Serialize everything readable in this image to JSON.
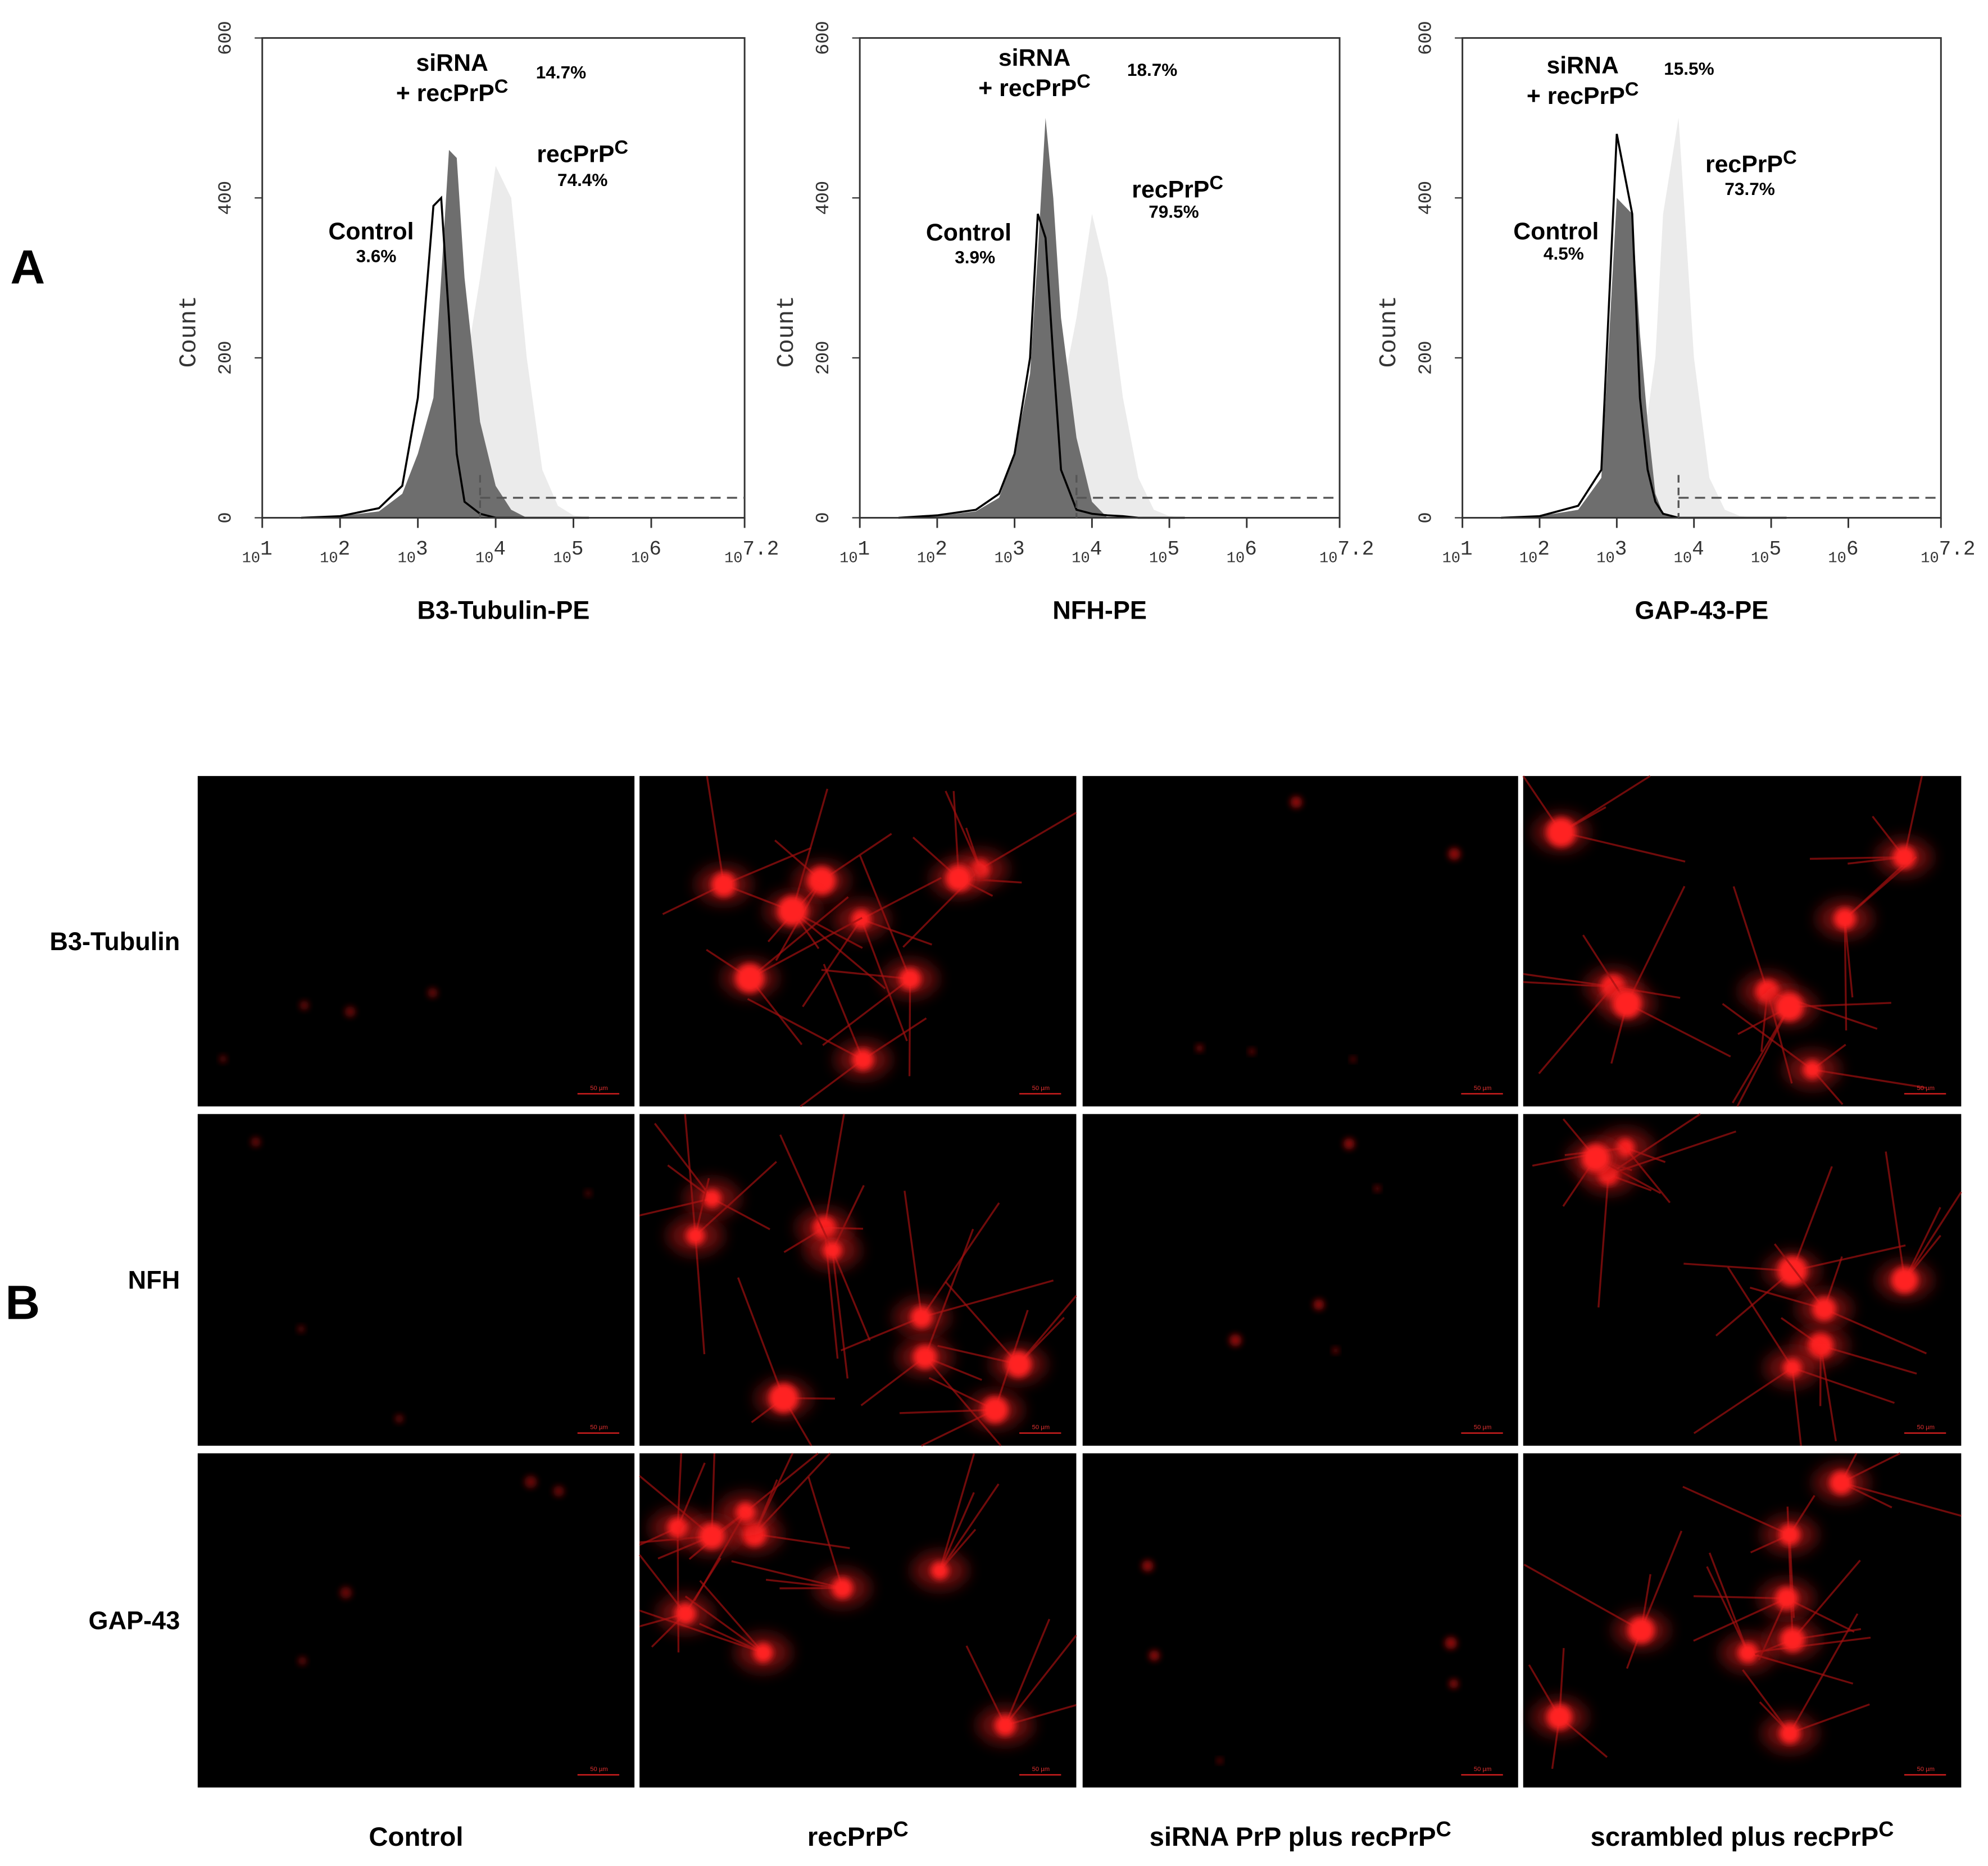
{
  "panel_a": {
    "letter": "A"
  },
  "chart_data": [
    {
      "type": "area",
      "xlabel": "B3-Tubulin-PE",
      "ylabel": "Count",
      "xlim": [
        1,
        7.2
      ],
      "ylim": [
        0,
        600
      ],
      "xticks": [
        {
          "value": 1,
          "label": "10",
          "sup": "1"
        },
        {
          "value": 2,
          "label": "10",
          "sup": "2"
        },
        {
          "value": 3,
          "label": "10",
          "sup": "3"
        },
        {
          "value": 4,
          "label": "10",
          "sup": "4"
        },
        {
          "value": 5,
          "label": "10",
          "sup": "5"
        },
        {
          "value": 6,
          "label": "10",
          "sup": "6"
        },
        {
          "value": 7.2,
          "label": "10",
          "sup": "7.2"
        }
      ],
      "yticks": [
        0,
        200,
        400,
        600
      ],
      "gate": {
        "x": [
          3.8,
          7.2
        ],
        "y": 25
      },
      "x": [
        1.5,
        2,
        2.5,
        2.8,
        3.0,
        3.2,
        3.3,
        3.4,
        3.5,
        3.6,
        3.8,
        4.0,
        4.2,
        4.4,
        4.6,
        4.8,
        5.0,
        5.2
      ],
      "series": [
        {
          "name_lines": [
            "Control"
          ],
          "percent": "3.6%",
          "color": "#000000",
          "style": "outline",
          "values": [
            0,
            2,
            12,
            40,
            150,
            390,
            400,
            250,
            80,
            20,
            5,
            0,
            0,
            0,
            0,
            0,
            0,
            0
          ]
        },
        {
          "name_lines": [
            "siRNA",
            "+ recPrP"
          ],
          "name_sup": "C",
          "percent": "14.7%",
          "color": "#6e6e6e",
          "style": "filled",
          "values": [
            0,
            2,
            8,
            30,
            80,
            150,
            300,
            460,
            450,
            300,
            120,
            40,
            10,
            0,
            0,
            0,
            0,
            0
          ]
        },
        {
          "name_lines": [
            "recPrP"
          ],
          "name_sup": "C",
          "percent": "74.4%",
          "color": "#ebebeb",
          "style": "filled",
          "values": [
            0,
            0,
            2,
            10,
            30,
            60,
            80,
            100,
            130,
            180,
            300,
            440,
            400,
            200,
            60,
            15,
            3,
            0
          ]
        }
      ]
    },
    {
      "type": "area",
      "xlabel": "NFH-PE",
      "ylabel": "Count",
      "xlim": [
        1,
        7.2
      ],
      "ylim": [
        0,
        600
      ],
      "xticks": [
        {
          "value": 1,
          "label": "10",
          "sup": "1"
        },
        {
          "value": 2,
          "label": "10",
          "sup": "2"
        },
        {
          "value": 3,
          "label": "10",
          "sup": "3"
        },
        {
          "value": 4,
          "label": "10",
          "sup": "4"
        },
        {
          "value": 5,
          "label": "10",
          "sup": "5"
        },
        {
          "value": 6,
          "label": "10",
          "sup": "6"
        },
        {
          "value": 7.2,
          "label": "10",
          "sup": "7.2"
        }
      ],
      "yticks": [
        0,
        200,
        400,
        600
      ],
      "gate": {
        "x": [
          3.8,
          7.2
        ],
        "y": 25
      },
      "x": [
        1.5,
        2,
        2.5,
        2.8,
        3.0,
        3.2,
        3.3,
        3.4,
        3.5,
        3.6,
        3.8,
        4.0,
        4.2,
        4.4,
        4.6,
        4.8,
        5.0,
        5.2
      ],
      "series": [
        {
          "name_lines": [
            "Control"
          ],
          "percent": "3.9%",
          "color": "#000000",
          "style": "outline",
          "values": [
            0,
            3,
            10,
            30,
            80,
            200,
            380,
            350,
            200,
            60,
            10,
            5,
            3,
            2,
            0,
            0,
            0,
            0
          ]
        },
        {
          "name_lines": [
            "siRNA",
            "+ recPrP"
          ],
          "name_sup": "C",
          "percent": "18.7%",
          "color": "#6e6e6e",
          "style": "filled",
          "values": [
            0,
            2,
            8,
            25,
            80,
            180,
            330,
            500,
            400,
            250,
            100,
            20,
            0,
            0,
            0,
            0,
            0,
            0
          ]
        },
        {
          "name_lines": [
            "recPrP"
          ],
          "name_sup": "C",
          "percent": "79.5%",
          "color": "#ebebeb",
          "style": "filled",
          "values": [
            0,
            0,
            2,
            8,
            20,
            40,
            60,
            90,
            120,
            150,
            250,
            380,
            300,
            150,
            50,
            10,
            2,
            0
          ]
        }
      ]
    },
    {
      "type": "area",
      "xlabel": "GAP-43-PE",
      "ylabel": "Count",
      "xlim": [
        1,
        7.2
      ],
      "ylim": [
        0,
        600
      ],
      "xticks": [
        {
          "value": 1,
          "label": "10",
          "sup": "1"
        },
        {
          "value": 2,
          "label": "10",
          "sup": "2"
        },
        {
          "value": 3,
          "label": "10",
          "sup": "3"
        },
        {
          "value": 4,
          "label": "10",
          "sup": "4"
        },
        {
          "value": 5,
          "label": "10",
          "sup": "5"
        },
        {
          "value": 6,
          "label": "10",
          "sup": "6"
        },
        {
          "value": 7.2,
          "label": "10",
          "sup": "7.2"
        }
      ],
      "yticks": [
        0,
        200,
        400,
        600
      ],
      "gate": {
        "x": [
          3.8,
          7.2
        ],
        "y": 25
      },
      "x": [
        1.5,
        2,
        2.5,
        2.8,
        3.0,
        3.2,
        3.3,
        3.4,
        3.5,
        3.6,
        3.8,
        4.0,
        4.2,
        4.4,
        4.6,
        4.8,
        5.0,
        5.2
      ],
      "series": [
        {
          "name_lines": [
            "Control"
          ],
          "percent": "4.5%",
          "color": "#000000",
          "style": "outline",
          "values": [
            0,
            2,
            15,
            60,
            480,
            380,
            150,
            60,
            20,
            5,
            0,
            0,
            0,
            0,
            0,
            0,
            0,
            0
          ]
        },
        {
          "name_lines": [
            "siRNA",
            "+ recPrP"
          ],
          "name_sup": "C",
          "percent": "15.5%",
          "color": "#6e6e6e",
          "style": "filled",
          "values": [
            0,
            2,
            10,
            50,
            400,
            380,
            230,
            120,
            30,
            5,
            0,
            0,
            0,
            0,
            0,
            0,
            0,
            0
          ]
        },
        {
          "name_lines": [
            "recPrP"
          ],
          "name_sup": "C",
          "percent": "73.7%",
          "color": "#ebebeb",
          "style": "filled",
          "values": [
            0,
            0,
            2,
            10,
            30,
            60,
            100,
            130,
            200,
            380,
            500,
            200,
            50,
            10,
            2,
            0,
            0,
            0
          ]
        }
      ]
    }
  ],
  "panel_b": {
    "letter": "B",
    "rows": [
      "B3-Tubulin",
      "NFH",
      "GAP-43"
    ],
    "columns": [
      {
        "label": "Control"
      },
      {
        "label": "recPrP",
        "sup": "C"
      },
      {
        "label": "siRNA PrP plus recPrP",
        "sup": "C"
      },
      {
        "label": "scrambled plus recPrP",
        "sup": "C"
      }
    ],
    "scale_bar": "50 µm"
  }
}
